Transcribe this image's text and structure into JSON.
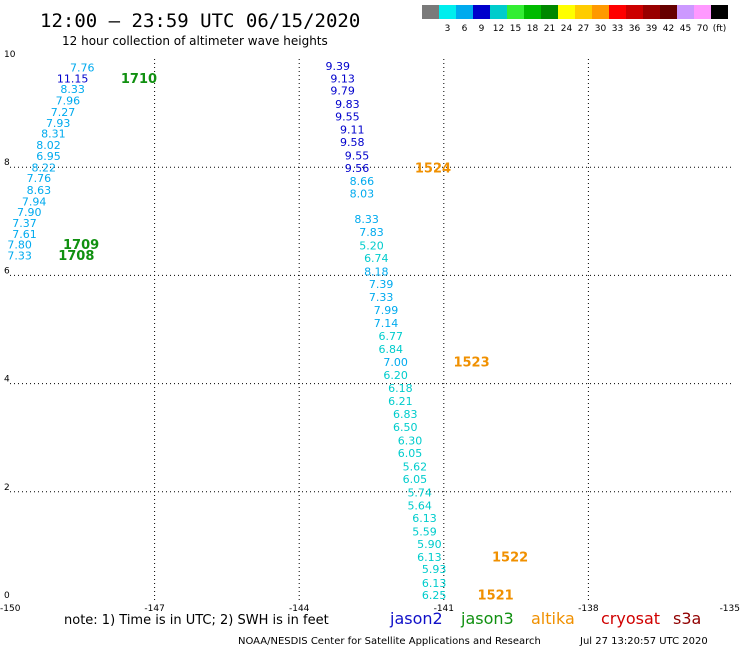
{
  "title": "12:00 — 23:59 UTC 06/15/2020",
  "subtitle": "12 hour collection of altimeter wave heights",
  "note": "note:  1) Time is in UTC;  2) SWH is in feet",
  "credit": "NOAA/NESDIS Center for Satellite Applications and Research",
  "timestamp": "Jul 27 13:20:57 UTC 2020",
  "satellites": [
    {
      "name": "jason2",
      "color": "#1010c8"
    },
    {
      "name": "jason3",
      "color": "#109010"
    },
    {
      "name": "altika",
      "color": "#f09000"
    },
    {
      "name": "cryosat",
      "color": "#d00000"
    },
    {
      "name": "s3a",
      "color": "#900000"
    }
  ],
  "legend": {
    "colors": [
      "#7a7a7a",
      "#00eeee",
      "#00aaee",
      "#0000cc",
      "#00cccc",
      "#33ee33",
      "#00bb00",
      "#008800",
      "#ffff00",
      "#ffcc00",
      "#ff9900",
      "#ff0000",
      "#cc0000",
      "#990000",
      "#660000",
      "#cc99ff",
      "#ff99ff",
      "#000000"
    ],
    "labels": [
      "3",
      "6",
      "9",
      "12",
      "15",
      "18",
      "21",
      "24",
      "27",
      "30",
      "33",
      "36",
      "39",
      "42",
      "45",
      "70"
    ],
    "unit": "(ft)"
  },
  "chart_data": {
    "type": "scatter",
    "xlabel": "",
    "ylabel": "",
    "xlim": [
      -150,
      -135
    ],
    "ylim": [
      0,
      10
    ],
    "xticks": [
      "-150",
      "-147",
      "-144",
      "-141",
      "-138",
      "-135"
    ],
    "yticks": [
      "0",
      "2",
      "4",
      "6",
      "8",
      "10"
    ],
    "grid": true,
    "points": [
      {
        "x": -148.5,
        "y": 9.82,
        "v": "7.76",
        "c": "#00aaee"
      },
      {
        "x": -148.7,
        "y": 9.62,
        "v": "11.15",
        "c": "#0000cc"
      },
      {
        "x": -148.7,
        "y": 9.43,
        "v": "8.33",
        "c": "#00aaee"
      },
      {
        "x": -148.8,
        "y": 9.21,
        "v": "7.96",
        "c": "#00aaee"
      },
      {
        "x": -148.9,
        "y": 9.0,
        "v": "7.27",
        "c": "#00aaee"
      },
      {
        "x": -149.0,
        "y": 8.8,
        "v": "7.93",
        "c": "#00aaee"
      },
      {
        "x": -149.1,
        "y": 8.6,
        "v": "8.31",
        "c": "#00aaee"
      },
      {
        "x": -149.2,
        "y": 8.39,
        "v": "8.02",
        "c": "#00aaee"
      },
      {
        "x": -149.2,
        "y": 8.19,
        "v": "6.95",
        "c": "#00aaee"
      },
      {
        "x": -149.3,
        "y": 7.98,
        "v": "8.22",
        "c": "#00aaee"
      },
      {
        "x": -149.4,
        "y": 7.78,
        "v": "7.76",
        "c": "#00aaee"
      },
      {
        "x": -149.4,
        "y": 7.56,
        "v": "8.63",
        "c": "#00aaee"
      },
      {
        "x": -149.5,
        "y": 7.35,
        "v": "7.94",
        "c": "#00aaee"
      },
      {
        "x": -149.6,
        "y": 7.15,
        "v": "7.90",
        "c": "#00aaee"
      },
      {
        "x": -149.7,
        "y": 6.95,
        "v": "7.37",
        "c": "#00aaee"
      },
      {
        "x": -149.7,
        "y": 6.75,
        "v": "7.61",
        "c": "#00aaee"
      },
      {
        "x": -149.8,
        "y": 6.55,
        "v": "7.80",
        "c": "#00aaee"
      },
      {
        "x": -149.8,
        "y": 6.35,
        "v": "7.33",
        "c": "#00aaee"
      },
      {
        "x": -143.2,
        "y": 9.85,
        "v": "9.39",
        "c": "#0000cc"
      },
      {
        "x": -143.1,
        "y": 9.62,
        "v": "9.13",
        "c": "#0000cc"
      },
      {
        "x": -143.1,
        "y": 9.4,
        "v": "9.79",
        "c": "#0000cc"
      },
      {
        "x": -143.0,
        "y": 9.15,
        "v": "9.83",
        "c": "#0000cc"
      },
      {
        "x": -143.0,
        "y": 8.92,
        "v": "9.55",
        "c": "#0000cc"
      },
      {
        "x": -142.9,
        "y": 8.68,
        "v": "9.11",
        "c": "#0000cc"
      },
      {
        "x": -142.9,
        "y": 8.45,
        "v": "9.58",
        "c": "#0000cc"
      },
      {
        "x": -142.8,
        "y": 8.2,
        "v": "9.55",
        "c": "#0000cc"
      },
      {
        "x": -142.8,
        "y": 7.97,
        "v": "9.56",
        "c": "#0000cc"
      },
      {
        "x": -142.7,
        "y": 7.73,
        "v": "8.66",
        "c": "#00aaee"
      },
      {
        "x": -142.7,
        "y": 7.5,
        "v": "8.03",
        "c": "#00aaee"
      },
      {
        "x": -142.6,
        "y": 7.02,
        "v": "8.33",
        "c": "#00aaee"
      },
      {
        "x": -142.5,
        "y": 6.78,
        "v": "7.83",
        "c": "#00aaee"
      },
      {
        "x": -142.5,
        "y": 6.53,
        "v": "5.20",
        "c": "#00cccc"
      },
      {
        "x": -142.4,
        "y": 6.3,
        "v": "6.74",
        "c": "#00cccc"
      },
      {
        "x": -142.4,
        "y": 6.05,
        "v": "8.18",
        "c": "#00aaee"
      },
      {
        "x": -142.3,
        "y": 5.82,
        "v": "7.39",
        "c": "#00aaee"
      },
      {
        "x": -142.3,
        "y": 5.58,
        "v": "7.33",
        "c": "#00aaee"
      },
      {
        "x": -142.2,
        "y": 5.34,
        "v": "7.99",
        "c": "#00aaee"
      },
      {
        "x": -142.2,
        "y": 5.1,
        "v": "7.14",
        "c": "#00aaee"
      },
      {
        "x": -142.1,
        "y": 4.86,
        "v": "6.77",
        "c": "#00cccc"
      },
      {
        "x": -142.1,
        "y": 4.62,
        "v": "6.84",
        "c": "#00cccc"
      },
      {
        "x": -142.0,
        "y": 4.38,
        "v": "7.00",
        "c": "#00aaee"
      },
      {
        "x": -142.0,
        "y": 4.14,
        "v": "6.20",
        "c": "#00cccc"
      },
      {
        "x": -141.9,
        "y": 3.9,
        "v": "6.18",
        "c": "#00cccc"
      },
      {
        "x": -141.9,
        "y": 3.66,
        "v": "6.21",
        "c": "#00cccc"
      },
      {
        "x": -141.8,
        "y": 3.42,
        "v": "6.83",
        "c": "#00cccc"
      },
      {
        "x": -141.8,
        "y": 3.18,
        "v": "6.50",
        "c": "#00cccc"
      },
      {
        "x": -141.7,
        "y": 2.93,
        "v": "6.30",
        "c": "#00cccc"
      },
      {
        "x": -141.7,
        "y": 2.7,
        "v": "6.05",
        "c": "#00cccc"
      },
      {
        "x": -141.6,
        "y": 2.45,
        "v": "5.62",
        "c": "#00cccc"
      },
      {
        "x": -141.6,
        "y": 2.22,
        "v": "6.05",
        "c": "#00cccc"
      },
      {
        "x": -141.5,
        "y": 1.97,
        "v": "5.74",
        "c": "#00cccc"
      },
      {
        "x": -141.5,
        "y": 1.73,
        "v": "5.64",
        "c": "#00cccc"
      },
      {
        "x": -141.4,
        "y": 1.5,
        "v": "6.13",
        "c": "#00cccc"
      },
      {
        "x": -141.4,
        "y": 1.25,
        "v": "5.59",
        "c": "#00cccc"
      },
      {
        "x": -141.3,
        "y": 1.02,
        "v": "5.90",
        "c": "#00cccc"
      },
      {
        "x": -141.3,
        "y": 0.78,
        "v": "6.13",
        "c": "#00cccc"
      },
      {
        "x": -141.2,
        "y": 0.55,
        "v": "5.93",
        "c": "#00cccc"
      },
      {
        "x": -141.2,
        "y": 0.3,
        "v": "6.13",
        "c": "#00cccc"
      },
      {
        "x": -141.2,
        "y": 0.07,
        "v": "6.25",
        "c": "#00cccc"
      }
    ],
    "pass_labels": [
      {
        "x": -147.7,
        "y": 9.62,
        "v": "1710",
        "c": "#109010"
      },
      {
        "x": -148.9,
        "y": 6.55,
        "v": "1709",
        "c": "#109010"
      },
      {
        "x": -149.0,
        "y": 6.35,
        "v": "1708",
        "c": "#109010"
      },
      {
        "x": -141.6,
        "y": 7.97,
        "v": "1524",
        "c": "#f09000"
      },
      {
        "x": -140.8,
        "y": 4.38,
        "v": "1523",
        "c": "#f09000"
      },
      {
        "x": -140.0,
        "y": 0.78,
        "v": "1522",
        "c": "#f09000"
      },
      {
        "x": -140.3,
        "y": 0.07,
        "v": "1521",
        "c": "#f09000"
      }
    ]
  }
}
